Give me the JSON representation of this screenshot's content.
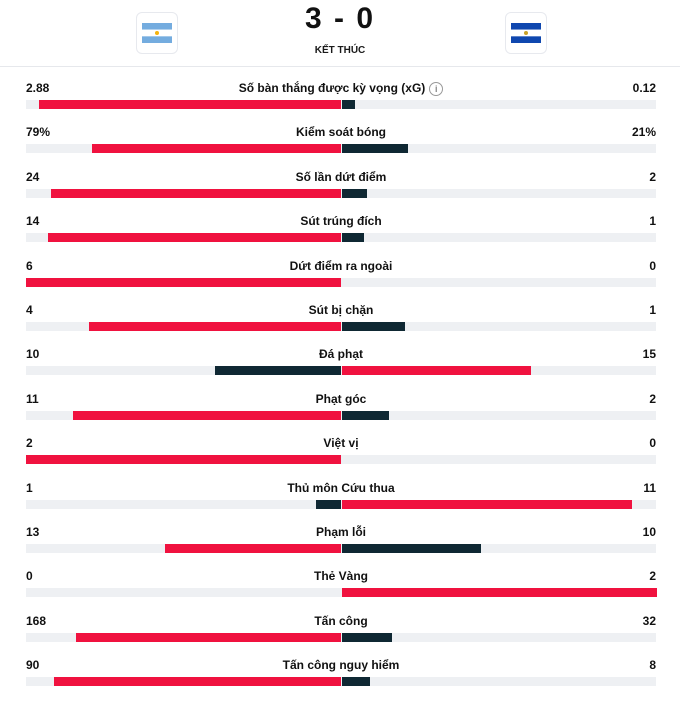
{
  "match": {
    "score": "3 - 0",
    "status": "KẾT THÚC",
    "home_team_flag": "argentina-flag-icon",
    "away_team_flag": "el-salvador-flag-icon"
  },
  "colors": {
    "leader": "#f0123f",
    "trailer": "#0f2833",
    "track": "#eef0f3"
  },
  "stats": [
    {
      "label": "Số bàn thắng được kỳ vọng (xG)",
      "home": "2.88",
      "away": "0.12",
      "home_share": 0.96,
      "away_share": 0.04,
      "home_color": "red",
      "away_color": "dark",
      "info": true
    },
    {
      "label": "Kiểm soát bóng",
      "home": "79%",
      "away": "21%",
      "home_share": 0.79,
      "away_share": 0.21,
      "home_color": "red",
      "away_color": "dark"
    },
    {
      "label": "Số lần dứt điểm",
      "home": "24",
      "away": "2",
      "home_share": 0.92,
      "away_share": 0.08,
      "home_color": "red",
      "away_color": "dark"
    },
    {
      "label": "Sút trúng đích",
      "home": "14",
      "away": "1",
      "home_share": 0.93,
      "away_share": 0.07,
      "home_color": "red",
      "away_color": "dark"
    },
    {
      "label": "Dứt điểm ra ngoài",
      "home": "6",
      "away": "0",
      "home_share": 1.0,
      "away_share": 0.0,
      "home_color": "red",
      "away_color": "dark"
    },
    {
      "label": "Sút bị chặn",
      "home": "4",
      "away": "1",
      "home_share": 0.8,
      "away_share": 0.2,
      "home_color": "red",
      "away_color": "dark"
    },
    {
      "label": "Đá phạt",
      "home": "10",
      "away": "15",
      "home_share": 0.4,
      "away_share": 0.6,
      "home_color": "dark",
      "away_color": "red"
    },
    {
      "label": "Phạt góc",
      "home": "11",
      "away": "2",
      "home_share": 0.85,
      "away_share": 0.15,
      "home_color": "red",
      "away_color": "dark"
    },
    {
      "label": "Việt vị",
      "home": "2",
      "away": "0",
      "home_share": 1.0,
      "away_share": 0.0,
      "home_color": "red",
      "away_color": "dark"
    },
    {
      "label": "Thủ môn Cứu thua",
      "home": "1",
      "away": "11",
      "home_share": 0.08,
      "away_share": 0.92,
      "home_color": "dark",
      "away_color": "red"
    },
    {
      "label": "Phạm lỗi",
      "home": "13",
      "away": "10",
      "home_share": 0.56,
      "away_share": 0.44,
      "home_color": "red",
      "away_color": "dark"
    },
    {
      "label": "Thẻ Vàng",
      "home": "0",
      "away": "2",
      "home_share": 0.0,
      "away_share": 1.0,
      "home_color": "dark",
      "away_color": "red"
    },
    {
      "label": "Tấn công",
      "home": "168",
      "away": "32",
      "home_share": 0.84,
      "away_share": 0.16,
      "home_color": "red",
      "away_color": "dark"
    },
    {
      "label": "Tấn công nguy hiểm",
      "home": "90",
      "away": "8",
      "home_share": 0.91,
      "away_share": 0.09,
      "home_color": "red",
      "away_color": "dark"
    }
  ]
}
